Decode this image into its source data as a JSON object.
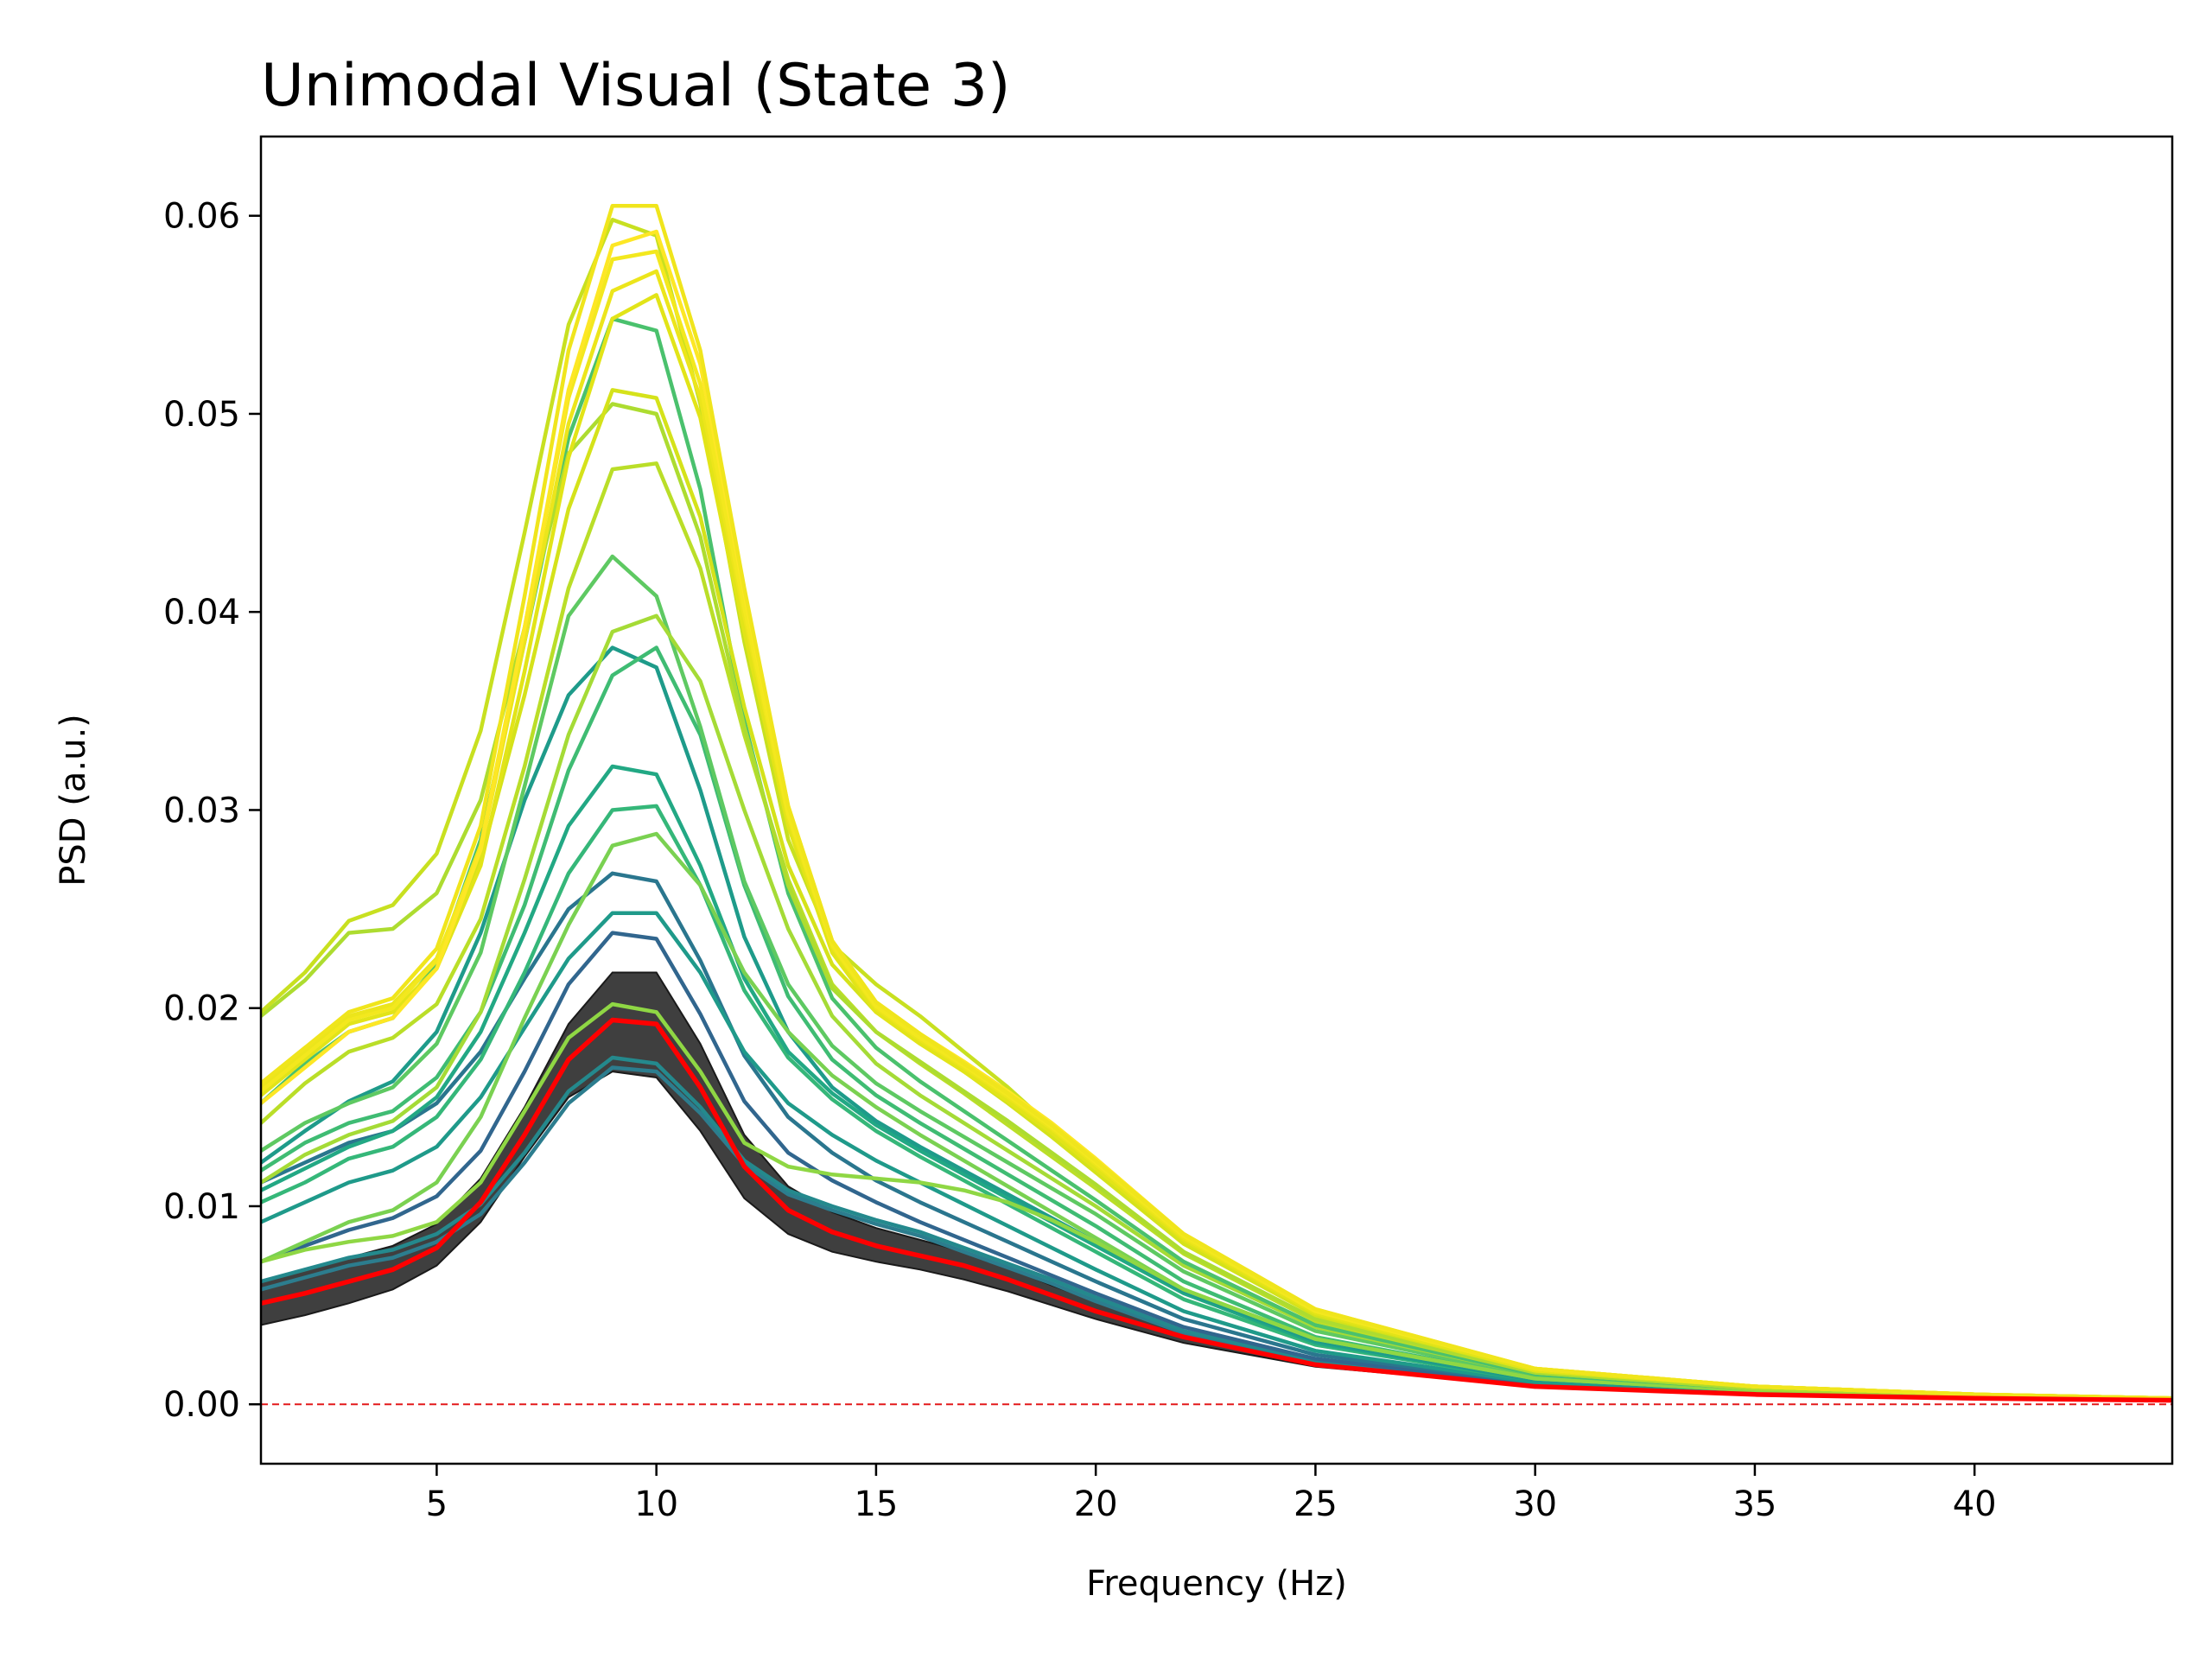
{
  "chart_data": {
    "type": "line",
    "title": "Unimodal Visual (State 3)",
    "xlabel": "Frequency (Hz)",
    "ylabel": "PSD (a.u.)",
    "xlim": [
      1,
      44.5
    ],
    "ylim": [
      -0.003,
      0.064
    ],
    "xticks": [
      5,
      10,
      15,
      20,
      25,
      30,
      35,
      40
    ],
    "yticks": [
      0.0,
      0.01,
      0.02,
      0.03,
      0.04,
      0.05,
      0.06
    ],
    "ytick_labels": [
      "0.00",
      "0.01",
      "0.02",
      "0.03",
      "0.04",
      "0.05",
      "0.06"
    ],
    "grid": false,
    "x": [
      1,
      2,
      3,
      4,
      5,
      6,
      7,
      8,
      9,
      10,
      11,
      12,
      13,
      14,
      15,
      16,
      17,
      18,
      19,
      20,
      22,
      25,
      30,
      35,
      40,
      44.5
    ],
    "reference_line": {
      "y": 0.0,
      "color": "#e31a1c",
      "style": "dashed"
    },
    "band": {
      "color": "#3f3f3f",
      "lower": [
        0.004,
        0.0045,
        0.0051,
        0.0058,
        0.007,
        0.0092,
        0.0125,
        0.0155,
        0.0168,
        0.0165,
        0.0138,
        0.0104,
        0.0086,
        0.0077,
        0.0072,
        0.0068,
        0.0063,
        0.0057,
        0.005,
        0.0043,
        0.0031,
        0.0019,
        0.0009,
        0.0005,
        0.0003,
        0.0002
      ],
      "upper": [
        0.0062,
        0.0068,
        0.0074,
        0.008,
        0.0091,
        0.0114,
        0.015,
        0.0192,
        0.0218,
        0.0218,
        0.0182,
        0.0136,
        0.011,
        0.0097,
        0.0089,
        0.0083,
        0.0077,
        0.0069,
        0.006,
        0.0052,
        0.0037,
        0.0022,
        0.001,
        0.0006,
        0.0004,
        0.0002
      ]
    },
    "mean_line": {
      "color": "#ff0000",
      "values": [
        0.0051,
        0.0056,
        0.0062,
        0.0068,
        0.0079,
        0.0102,
        0.0136,
        0.0174,
        0.0194,
        0.0192,
        0.016,
        0.012,
        0.0098,
        0.0087,
        0.008,
        0.0075,
        0.007,
        0.0063,
        0.0055,
        0.0047,
        0.0034,
        0.002,
        0.0009,
        0.0005,
        0.0003,
        0.0002
      ]
    },
    "series": [
      {
        "color": "#2c7d8e",
        "values": [
          0.0058,
          0.0064,
          0.007,
          0.0074,
          0.0082,
          0.0096,
          0.0122,
          0.0152,
          0.017,
          0.0168,
          0.0147,
          0.0121,
          0.0106,
          0.0098,
          0.0091,
          0.0085,
          0.0077,
          0.0069,
          0.0061,
          0.0052,
          0.0036,
          0.0021,
          0.0009,
          0.0005,
          0.0003,
          0.0002
        ]
      },
      {
        "color": "#24898d",
        "values": [
          0.0062,
          0.0068,
          0.0074,
          0.0078,
          0.0086,
          0.0101,
          0.0127,
          0.0158,
          0.0175,
          0.0172,
          0.015,
          0.0123,
          0.0108,
          0.01,
          0.0093,
          0.0087,
          0.0079,
          0.0071,
          0.0063,
          0.0054,
          0.0037,
          0.0022,
          0.0009,
          0.0005,
          0.0003,
          0.0002
        ]
      },
      {
        "color": "#31668e",
        "values": [
          0.0072,
          0.008,
          0.0088,
          0.0094,
          0.0105,
          0.0128,
          0.0168,
          0.0212,
          0.0238,
          0.0235,
          0.0197,
          0.0153,
          0.0127,
          0.0113,
          0.0102,
          0.0092,
          0.0083,
          0.0074,
          0.0065,
          0.0056,
          0.0039,
          0.0023,
          0.001,
          0.0005,
          0.0003,
          0.0002
        ]
      },
      {
        "color": "#2a768e",
        "values": [
          0.0112,
          0.0122,
          0.0132,
          0.0138,
          0.0152,
          0.0178,
          0.0215,
          0.025,
          0.0268,
          0.0264,
          0.0224,
          0.0176,
          0.0145,
          0.0127,
          0.0113,
          0.0102,
          0.0092,
          0.0082,
          0.0072,
          0.0062,
          0.0043,
          0.0025,
          0.0011,
          0.0006,
          0.0003,
          0.0002
        ]
      },
      {
        "color": "#1f9a8a",
        "values": [
          0.0092,
          0.0102,
          0.0112,
          0.0118,
          0.013,
          0.0155,
          0.019,
          0.0225,
          0.0248,
          0.0248,
          0.0218,
          0.0178,
          0.0152,
          0.0136,
          0.0123,
          0.0112,
          0.0101,
          0.009,
          0.0079,
          0.0068,
          0.0047,
          0.0027,
          0.0011,
          0.0006,
          0.0003,
          0.0002
        ]
      },
      {
        "color": "#35b779",
        "values": [
          0.0102,
          0.0112,
          0.0124,
          0.013,
          0.0145,
          0.0174,
          0.0218,
          0.0268,
          0.03,
          0.0302,
          0.0262,
          0.0209,
          0.0175,
          0.0154,
          0.0138,
          0.0125,
          0.0113,
          0.0101,
          0.0089,
          0.0077,
          0.0053,
          0.003,
          0.0012,
          0.0006,
          0.0003,
          0.0002
        ]
      },
      {
        "color": "#22a884",
        "values": [
          0.0108,
          0.0119,
          0.013,
          0.0138,
          0.0155,
          0.0188,
          0.0238,
          0.0292,
          0.0322,
          0.0318,
          0.0272,
          0.0215,
          0.0178,
          0.0157,
          0.0141,
          0.0128,
          0.0116,
          0.0104,
          0.0092,
          0.008,
          0.0056,
          0.0031,
          0.0012,
          0.0006,
          0.0003,
          0.0002
        ]
      },
      {
        "color": "#1e9b8a",
        "values": [
          0.0122,
          0.0138,
          0.0153,
          0.0163,
          0.0188,
          0.0238,
          0.0305,
          0.0358,
          0.0382,
          0.0372,
          0.031,
          0.0236,
          0.0188,
          0.016,
          0.0143,
          0.013,
          0.0118,
          0.0106,
          0.0094,
          0.0082,
          0.0057,
          0.0032,
          0.0012,
          0.0006,
          0.0003,
          0.0002
        ]
      },
      {
        "color": "#3fbc73",
        "values": [
          0.0118,
          0.0132,
          0.0142,
          0.0148,
          0.0165,
          0.0198,
          0.0252,
          0.032,
          0.0368,
          0.0382,
          0.0338,
          0.0262,
          0.0206,
          0.0174,
          0.0156,
          0.0142,
          0.0129,
          0.0116,
          0.0103,
          0.009,
          0.0062,
          0.0034,
          0.0013,
          0.0007,
          0.0004,
          0.0002
        ]
      },
      {
        "color": "#5ec962",
        "values": [
          0.0128,
          0.0142,
          0.0152,
          0.016,
          0.0182,
          0.0228,
          0.0312,
          0.0398,
          0.0428,
          0.0408,
          0.0342,
          0.0264,
          0.0212,
          0.0181,
          0.0162,
          0.0148,
          0.0135,
          0.0122,
          0.0109,
          0.0096,
          0.0067,
          0.0037,
          0.0014,
          0.0007,
          0.0004,
          0.0002
        ]
      },
      {
        "color": "#7ad151",
        "values": [
          0.0072,
          0.0082,
          0.0092,
          0.0098,
          0.0112,
          0.0145,
          0.0195,
          0.0242,
          0.0282,
          0.0288,
          0.0262,
          0.0218,
          0.0188,
          0.0166,
          0.015,
          0.0136,
          0.0123,
          0.011,
          0.0097,
          0.0084,
          0.0058,
          0.0033,
          0.0013,
          0.0007,
          0.0004,
          0.0002
        ]
      },
      {
        "color": "#8fd744",
        "values": [
          0.0072,
          0.0078,
          0.0082,
          0.0085,
          0.0092,
          0.0112,
          0.0148,
          0.0185,
          0.0202,
          0.0198,
          0.0168,
          0.0132,
          0.012,
          0.0116,
          0.0114,
          0.0112,
          0.0108,
          0.0102,
          0.0093,
          0.0082,
          0.0058,
          0.0033,
          0.0013,
          0.0007,
          0.0004,
          0.0002
        ]
      },
      {
        "color": "#a5db36",
        "values": [
          0.0112,
          0.0126,
          0.0136,
          0.0143,
          0.016,
          0.0198,
          0.0265,
          0.0338,
          0.039,
          0.0398,
          0.0365,
          0.03,
          0.024,
          0.0196,
          0.0172,
          0.0156,
          0.0142,
          0.0128,
          0.0114,
          0.01,
          0.007,
          0.0039,
          0.0015,
          0.0008,
          0.0004,
          0.0002
        ]
      },
      {
        "color": "#4ac16d",
        "values": [
          0.0152,
          0.0172,
          0.0188,
          0.0195,
          0.0222,
          0.0285,
          0.0385,
          0.0488,
          0.0548,
          0.0542,
          0.0462,
          0.0345,
          0.0258,
          0.0205,
          0.018,
          0.0163,
          0.0148,
          0.0133,
          0.0118,
          0.0103,
          0.0072,
          0.004,
          0.0015,
          0.0008,
          0.0004,
          0.0002
        ]
      },
      {
        "color": "#bade28",
        "values": [
          0.0142,
          0.0162,
          0.0178,
          0.0185,
          0.0202,
          0.0245,
          0.0322,
          0.0412,
          0.0472,
          0.0475,
          0.0422,
          0.0338,
          0.0265,
          0.0212,
          0.0188,
          0.0172,
          0.0157,
          0.0141,
          0.0125,
          0.0109,
          0.0076,
          0.0042,
          0.0016,
          0.0008,
          0.0004,
          0.0002
        ]
      },
      {
        "color": "#addc30",
        "values": [
          0.0196,
          0.0214,
          0.0238,
          0.024,
          0.0258,
          0.0305,
          0.0392,
          0.048,
          0.0505,
          0.05,
          0.0438,
          0.0342,
          0.0262,
          0.021,
          0.0188,
          0.0173,
          0.0158,
          0.0143,
          0.0127,
          0.0111,
          0.0077,
          0.0043,
          0.0016,
          0.0008,
          0.0004,
          0.0002
        ]
      },
      {
        "color": "#c8e020",
        "values": [
          0.0198,
          0.0218,
          0.0244,
          0.0252,
          0.0278,
          0.034,
          0.044,
          0.0545,
          0.0598,
          0.059,
          0.0505,
          0.0385,
          0.0285,
          0.0232,
          0.0212,
          0.0196,
          0.0178,
          0.016,
          0.014,
          0.012,
          0.0082,
          0.0045,
          0.0017,
          0.0009,
          0.0005,
          0.0003
        ]
      },
      {
        "color": "#d5e21a",
        "values": [
          0.0162,
          0.018,
          0.0195,
          0.0202,
          0.0225,
          0.0275,
          0.0358,
          0.0452,
          0.0512,
          0.0508,
          0.0448,
          0.0352,
          0.0272,
          0.0222,
          0.0198,
          0.0183,
          0.0168,
          0.0152,
          0.0135,
          0.0117,
          0.0081,
          0.0045,
          0.0017,
          0.0009,
          0.0005,
          0.0003
        ]
      },
      {
        "color": "#e2e418",
        "values": [
          0.0156,
          0.0174,
          0.0192,
          0.0198,
          0.022,
          0.0272,
          0.037,
          0.0478,
          0.0548,
          0.056,
          0.0498,
          0.039,
          0.0292,
          0.0228,
          0.0198,
          0.0182,
          0.0168,
          0.0153,
          0.0137,
          0.0119,
          0.0083,
          0.0046,
          0.0017,
          0.0009,
          0.0005,
          0.0003
        ]
      },
      {
        "color": "#ece51b",
        "values": [
          0.016,
          0.0178,
          0.0196,
          0.0202,
          0.0225,
          0.028,
          0.0385,
          0.0495,
          0.0562,
          0.0572,
          0.0508,
          0.0398,
          0.0296,
          0.0231,
          0.02,
          0.0184,
          0.017,
          0.0155,
          0.0139,
          0.0121,
          0.0084,
          0.0047,
          0.0018,
          0.0009,
          0.0005,
          0.0003
        ]
      },
      {
        "color": "#f3e81e",
        "values": [
          0.0158,
          0.0176,
          0.0194,
          0.02,
          0.0224,
          0.0282,
          0.0392,
          0.0508,
          0.0578,
          0.0582,
          0.0515,
          0.0402,
          0.0298,
          0.0232,
          0.0201,
          0.0185,
          0.0171,
          0.0156,
          0.014,
          0.0122,
          0.0085,
          0.0047,
          0.0018,
          0.0009,
          0.0005,
          0.0003
        ]
      },
      {
        "color": "#fde725",
        "values": [
          0.0152,
          0.017,
          0.0188,
          0.0195,
          0.022,
          0.028,
          0.0392,
          0.0512,
          0.0585,
          0.0592,
          0.0525,
          0.041,
          0.0302,
          0.0234,
          0.0203,
          0.0187,
          0.0173,
          0.0158,
          0.0142,
          0.0124,
          0.0086,
          0.0048,
          0.0018,
          0.0009,
          0.0005,
          0.0003
        ]
      },
      {
        "color": "#f0e51c",
        "values": [
          0.0162,
          0.018,
          0.0198,
          0.0205,
          0.023,
          0.0292,
          0.0408,
          0.0532,
          0.0605,
          0.0605,
          0.0532,
          0.0412,
          0.0302,
          0.0234,
          0.0203,
          0.0187,
          0.0172,
          0.0157,
          0.0141,
          0.0123,
          0.0086,
          0.0048,
          0.0018,
          0.0009,
          0.0005,
          0.0003
        ]
      }
    ]
  }
}
